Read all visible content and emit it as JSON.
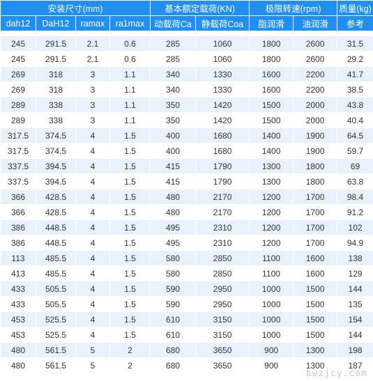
{
  "header": {
    "groups": [
      {
        "label": "安装尺寸(mm)"
      },
      {
        "label": "基本额定载荷(KN)"
      },
      {
        "label": "极限转速(rpm)"
      },
      {
        "label": "质量(kg)"
      }
    ],
    "columns": [
      "dah12",
      "DaH12",
      "ramax",
      "ra1max",
      "动载荷Ca",
      "静载荷Coa",
      "脂润滑",
      "油润滑",
      "参考"
    ]
  },
  "rows": [
    [
      "245",
      "291.5",
      "2.1",
      "0.6",
      "285",
      "1060",
      "1800",
      "2600",
      "31.5"
    ],
    [
      "245",
      "291.5",
      "2.1",
      "0.6",
      "285",
      "1060",
      "1800",
      "2600",
      "29.2"
    ],
    [
      "269",
      "318",
      "3",
      "1.1",
      "340",
      "1330",
      "1600",
      "2200",
      "41.7"
    ],
    [
      "269",
      "318",
      "3",
      "1.1",
      "340",
      "1330",
      "1600",
      "2200",
      "38.5"
    ],
    [
      "289",
      "338",
      "3",
      "1.1",
      "350",
      "1420",
      "1500",
      "2000",
      "43.8"
    ],
    [
      "289",
      "338",
      "3",
      "1.1",
      "350",
      "1420",
      "1500",
      "2000",
      "40.4"
    ],
    [
      "317.5",
      "374.5",
      "4",
      "1.5",
      "400",
      "1680",
      "1400",
      "1900",
      "64.5"
    ],
    [
      "317.5",
      "374.5",
      "4",
      "1.5",
      "400",
      "1680",
      "1400",
      "1900",
      "59.7"
    ],
    [
      "337.5",
      "394.5",
      "4",
      "1.5",
      "415",
      "1790",
      "1300",
      "1800",
      "69"
    ],
    [
      "337.5",
      "394.5",
      "4",
      "1.5",
      "415",
      "1790",
      "1300",
      "1800",
      "63.8"
    ],
    [
      "366",
      "428.5",
      "4",
      "1.5",
      "480",
      "2170",
      "1200",
      "1700",
      "98.4"
    ],
    [
      "366",
      "428.5",
      "4",
      "1.5",
      "480",
      "2170",
      "1200",
      "1700",
      "91.2"
    ],
    [
      "386",
      "448.5",
      "4",
      "1.5",
      "495",
      "2310",
      "1200",
      "1700",
      "102"
    ],
    [
      "386",
      "448.5",
      "4",
      "1.5",
      "495",
      "2310",
      "1200",
      "1700",
      "94.9"
    ],
    [
      "113",
      "485.5",
      "4",
      "1.5",
      "580",
      "2850",
      "1100",
      "1600",
      "138"
    ],
    [
      "413",
      "485.5",
      "4",
      "1.5",
      "580",
      "2850",
      "1100",
      "1600",
      "129"
    ],
    [
      "433",
      "505.5",
      "4",
      "1.5",
      "590",
      "2950",
      "1000",
      "1500",
      "144"
    ],
    [
      "433",
      "505.5",
      "4",
      "1.5",
      "590",
      "2950",
      "1000",
      "1500",
      "135"
    ],
    [
      "453",
      "525.5",
      "4",
      "1.5",
      "610",
      "3150",
      "1000",
      "1500",
      "154"
    ],
    [
      "453",
      "525.5",
      "4",
      "1.5",
      "610",
      "3150",
      "1000",
      "1500",
      "144"
    ],
    [
      "480",
      "561.5",
      "5",
      "2",
      "680",
      "3650",
      "900",
      "1300",
      "198"
    ],
    [
      "480",
      "561.5",
      "5",
      "2",
      "680",
      "3650",
      "900",
      "1300",
      "187"
    ]
  ],
  "watermark": "bwzjcy.com",
  "colors": {
    "header_bg": "#1f8ff0",
    "header_text": "#ffffff",
    "stripe_bg": "#e9f2fb"
  }
}
